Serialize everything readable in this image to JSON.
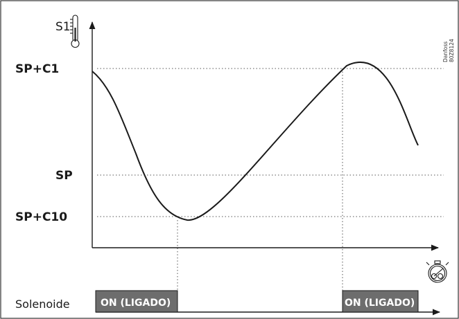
{
  "sensor_label": "S1",
  "watermark": [
    "Danfoss",
    "80Z8124"
  ],
  "y_levels": [
    {
      "label": "SP+C1",
      "value": 1.0
    },
    {
      "label": "SP",
      "value": 0.25
    },
    {
      "label": "SP+C10",
      "value": 0.0
    }
  ],
  "solenoid": {
    "label": "Solenoide",
    "on_periods": [
      {
        "label": "ON (LIGADO)"
      },
      {
        "label": "ON (LIGADO)"
      }
    ]
  },
  "icons": {
    "temperature": "thermometer-icon",
    "time": "stopwatch-icon"
  }
}
